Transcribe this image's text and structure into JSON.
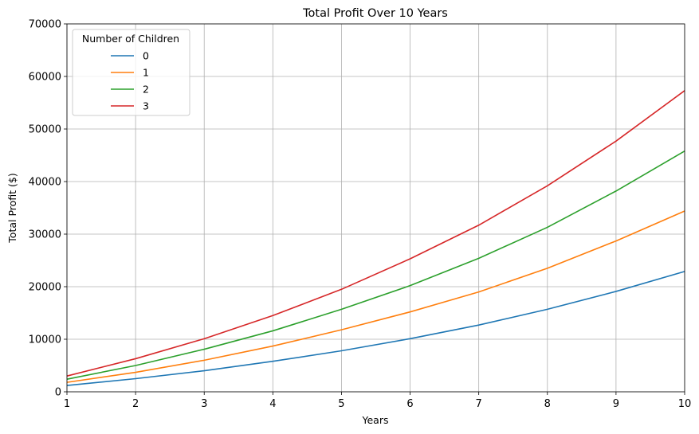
{
  "chart_data": {
    "type": "line",
    "title": "Total Profit Over 10 Years",
    "xlabel": "Years",
    "ylabel": "Total Profit ($)",
    "x": [
      1,
      2,
      3,
      4,
      5,
      6,
      7,
      8,
      9,
      10
    ],
    "xlim": [
      1,
      10
    ],
    "ylim": [
      0,
      70000
    ],
    "xticks": [
      1,
      2,
      3,
      4,
      5,
      6,
      7,
      8,
      9,
      10
    ],
    "yticks": [
      0,
      10000,
      20000,
      30000,
      40000,
      50000,
      60000,
      70000
    ],
    "grid": true,
    "legend": {
      "title": "Number of Children",
      "placement": "upper-left"
    },
    "series": [
      {
        "name": "0",
        "color": "#1f77b4",
        "values": [
          1200,
          2500,
          4000,
          5800,
          7800,
          10100,
          12700,
          15700,
          19100,
          22900
        ]
      },
      {
        "name": "1",
        "color": "#ff7f0e",
        "values": [
          1800,
          3700,
          6000,
          8700,
          11800,
          15200,
          19000,
          23500,
          28700,
          34400
        ]
      },
      {
        "name": "2",
        "color": "#2ca02c",
        "values": [
          2400,
          5000,
          8100,
          11600,
          15700,
          20200,
          25400,
          31300,
          38200,
          45800
        ]
      },
      {
        "name": "3",
        "color": "#d62728",
        "values": [
          3000,
          6300,
          10100,
          14500,
          19500,
          25300,
          31700,
          39200,
          47700,
          57300
        ]
      }
    ]
  }
}
